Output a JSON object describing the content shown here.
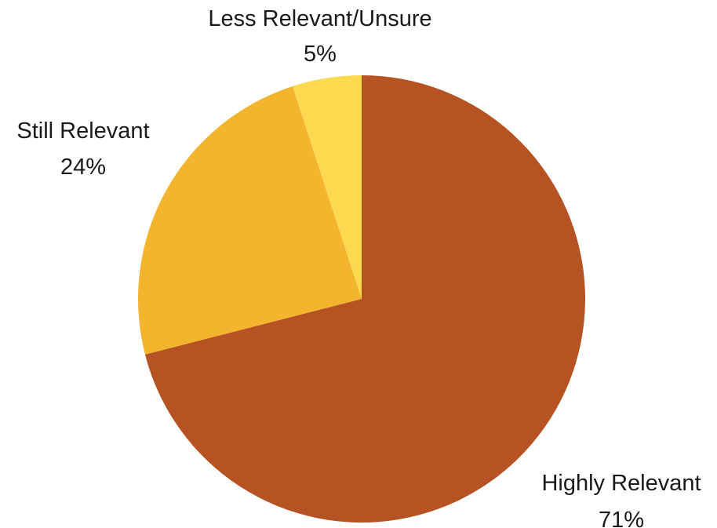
{
  "chart_data": {
    "type": "pie",
    "title": "",
    "slices": [
      {
        "label": "Highly Relevant",
        "value": 71,
        "display": "71%",
        "color": "#B55323"
      },
      {
        "label": "Still Relevant",
        "value": 24,
        "display": "24%",
        "color": "#F3B42E"
      },
      {
        "label": "Less Relevant/Unsure",
        "value": 5,
        "display": "5%",
        "color": "#FDD94F"
      }
    ],
    "start_angle": "12 o'clock",
    "direction": "clockwise",
    "legend": "none"
  }
}
